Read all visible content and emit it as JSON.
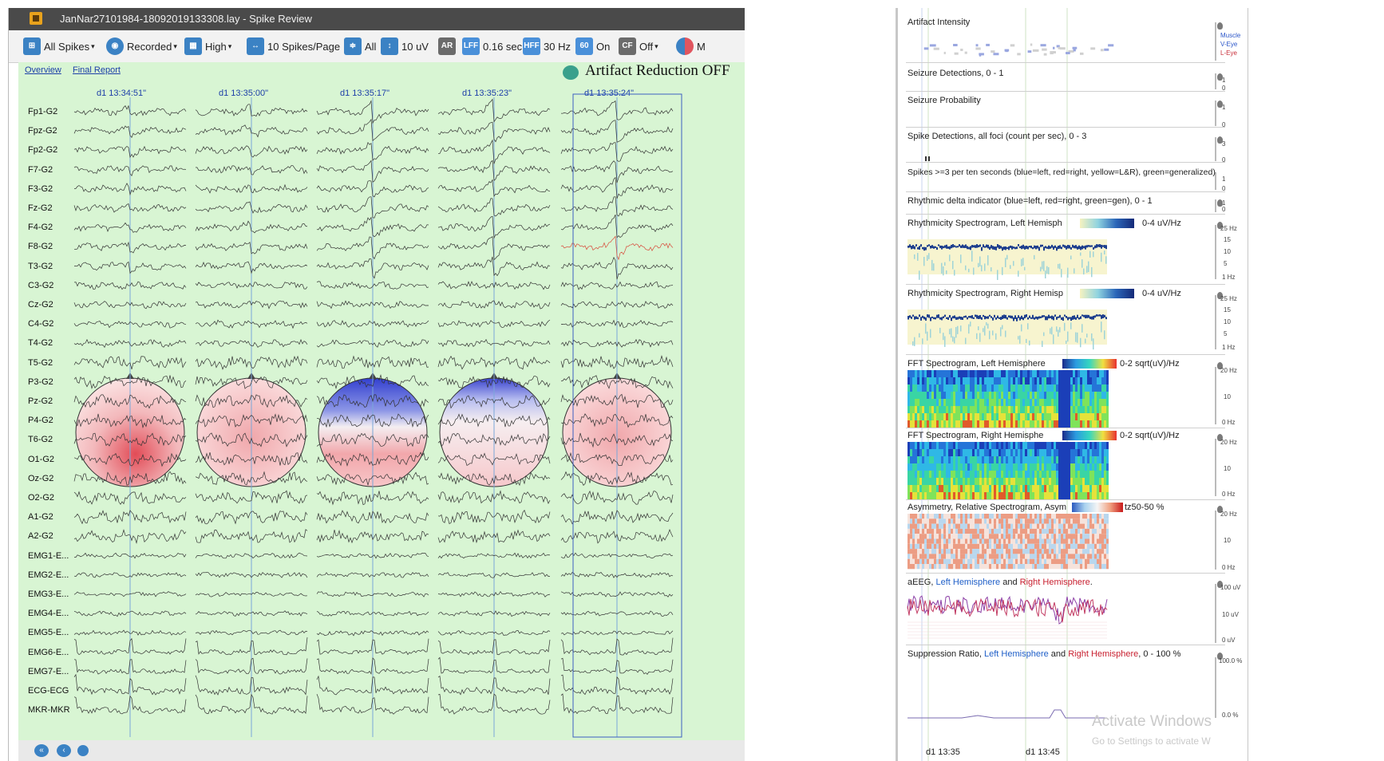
{
  "window": {
    "title": "JanNar27101984-18092019133308.lay - Spike Review"
  },
  "toolbar": {
    "all_spikes": "All Spikes",
    "recorded": "Recorded",
    "high": "High",
    "spikes_per_page": "10 Spikes/Page",
    "all": "All",
    "sensitivity": "10 uV",
    "ar": "AR",
    "lff_icon": "LFF",
    "lff_value": "0.16 sec",
    "hff_icon": "HFF",
    "hff_value": "30 Hz",
    "notch_icon": "60",
    "notch_value": "On",
    "cf_icon": "CF",
    "cf_value": "Off",
    "m_label": "M"
  },
  "links": {
    "overview": "Overview",
    "final_report": "Final Report"
  },
  "artifact_reduction": "Artifact Reduction OFF",
  "spike_times": [
    "d1 13:34:51\"",
    "d1 13:35:00\"",
    "d1 13:35:17\"",
    "d1 13:35:23\"",
    "d1 13:35:24\""
  ],
  "channels": [
    "Fp1-G2",
    "Fpz-G2",
    "Fp2-G2",
    "F7-G2",
    "F3-G2",
    "Fz-G2",
    "F4-G2",
    "F8-G2",
    "T3-G2",
    "C3-G2",
    "Cz-G2",
    "C4-G2",
    "T4-G2",
    "T5-G2",
    "P3-G2",
    "Pz-G2",
    "P4-G2",
    "T6-G2",
    "O1-G2",
    "Oz-G2",
    "O2-G2",
    "A1-G2",
    "A2-G2",
    "EMG1-E...",
    "EMG2-E...",
    "EMG3-E...",
    "EMG4-E...",
    "EMG5-E...",
    "EMG6-E...",
    "EMG7-E...",
    "ECG-ECG",
    "MKR-MKR"
  ],
  "colors": {
    "eeg_bg": "#d8f5d3",
    "title_bg": "#4a4a4a",
    "link": "#1d3fa8",
    "map_red": "#e0555f",
    "map_blue": "#3a4fd0"
  },
  "trends": {
    "artifact": {
      "title": "Artifact Intensity",
      "legend": [
        "Muscle",
        "V-Eye",
        "L-Eye"
      ]
    },
    "seizure_detections": {
      "title": "Seizure Detections, 0 - 1",
      "ticks": [
        "1",
        "0"
      ]
    },
    "seizure_probability": {
      "title": "Seizure Probability",
      "ticks": [
        "1",
        "0"
      ]
    },
    "spike_detections": {
      "title": "Spike Detections, all foci (count per sec), 0 - 3",
      "ticks": [
        "3",
        "0"
      ]
    },
    "spikes_ten": {
      "title": "Spikes >=3 per ten seconds (blue=left, red=right, yellow=L&R), green=generalized)",
      "ticks": [
        "1",
        "0"
      ]
    },
    "rhythmic_delta": {
      "title": "Rhythmic delta indicator (blue=left, red=right, green=gen),  0 - 1",
      "ticks": [
        "1",
        "0"
      ]
    },
    "rhythm_left": {
      "title": "Rhythmicity Spectrogram, Left Hemisph",
      "range": "0-4 uV/Hz",
      "ticks": [
        "25 Hz",
        "15",
        "10",
        "5",
        "1 Hz"
      ]
    },
    "rhythm_right": {
      "title": "Rhythmicity Spectrogram, Right Hemisp",
      "range": "0-4 uV/Hz",
      "ticks": [
        "25 Hz",
        "15",
        "10",
        "5",
        "1 Hz"
      ]
    },
    "fft_left": {
      "title": "FFT Spectrogram, Left Hemisphere",
      "range": "0-2 sqrt(uV)/Hz",
      "ticks": [
        "20 Hz",
        "10",
        "0 Hz"
      ]
    },
    "fft_right": {
      "title": "FFT Spectrogram, Right Hemisphe",
      "range": "0-2 sqrt(uV)/Hz",
      "ticks": [
        "20 Hz",
        "10",
        "0 Hz"
      ]
    },
    "asymmetry": {
      "title": "Asymmetry, Relative Spectrogram, Asym",
      "range": "tz50-50 %",
      "ticks": [
        "20 Hz",
        "10",
        "0 Hz"
      ]
    },
    "aeeg": {
      "title": "aEEG,",
      "left": "Left Hemisphere",
      "and": "and",
      "right": "Right Hemisphere",
      "end": ".",
      "ticks": [
        "100 uV",
        "10 uV",
        "0 uV"
      ]
    },
    "suppression": {
      "title": "Suppression Ratio,",
      "left": "Left Hemisphere",
      "and": "and",
      "right": "Right Hemisphere",
      "end": ",  0 - 100 %",
      "ticks": [
        "100.0 %",
        "0.0 %"
      ]
    }
  },
  "time_axis": [
    "d1 13:35",
    "d1 13:45"
  ],
  "watermark": {
    "line1": "Activate Windows",
    "line2": "Go to Settings to activate W"
  }
}
